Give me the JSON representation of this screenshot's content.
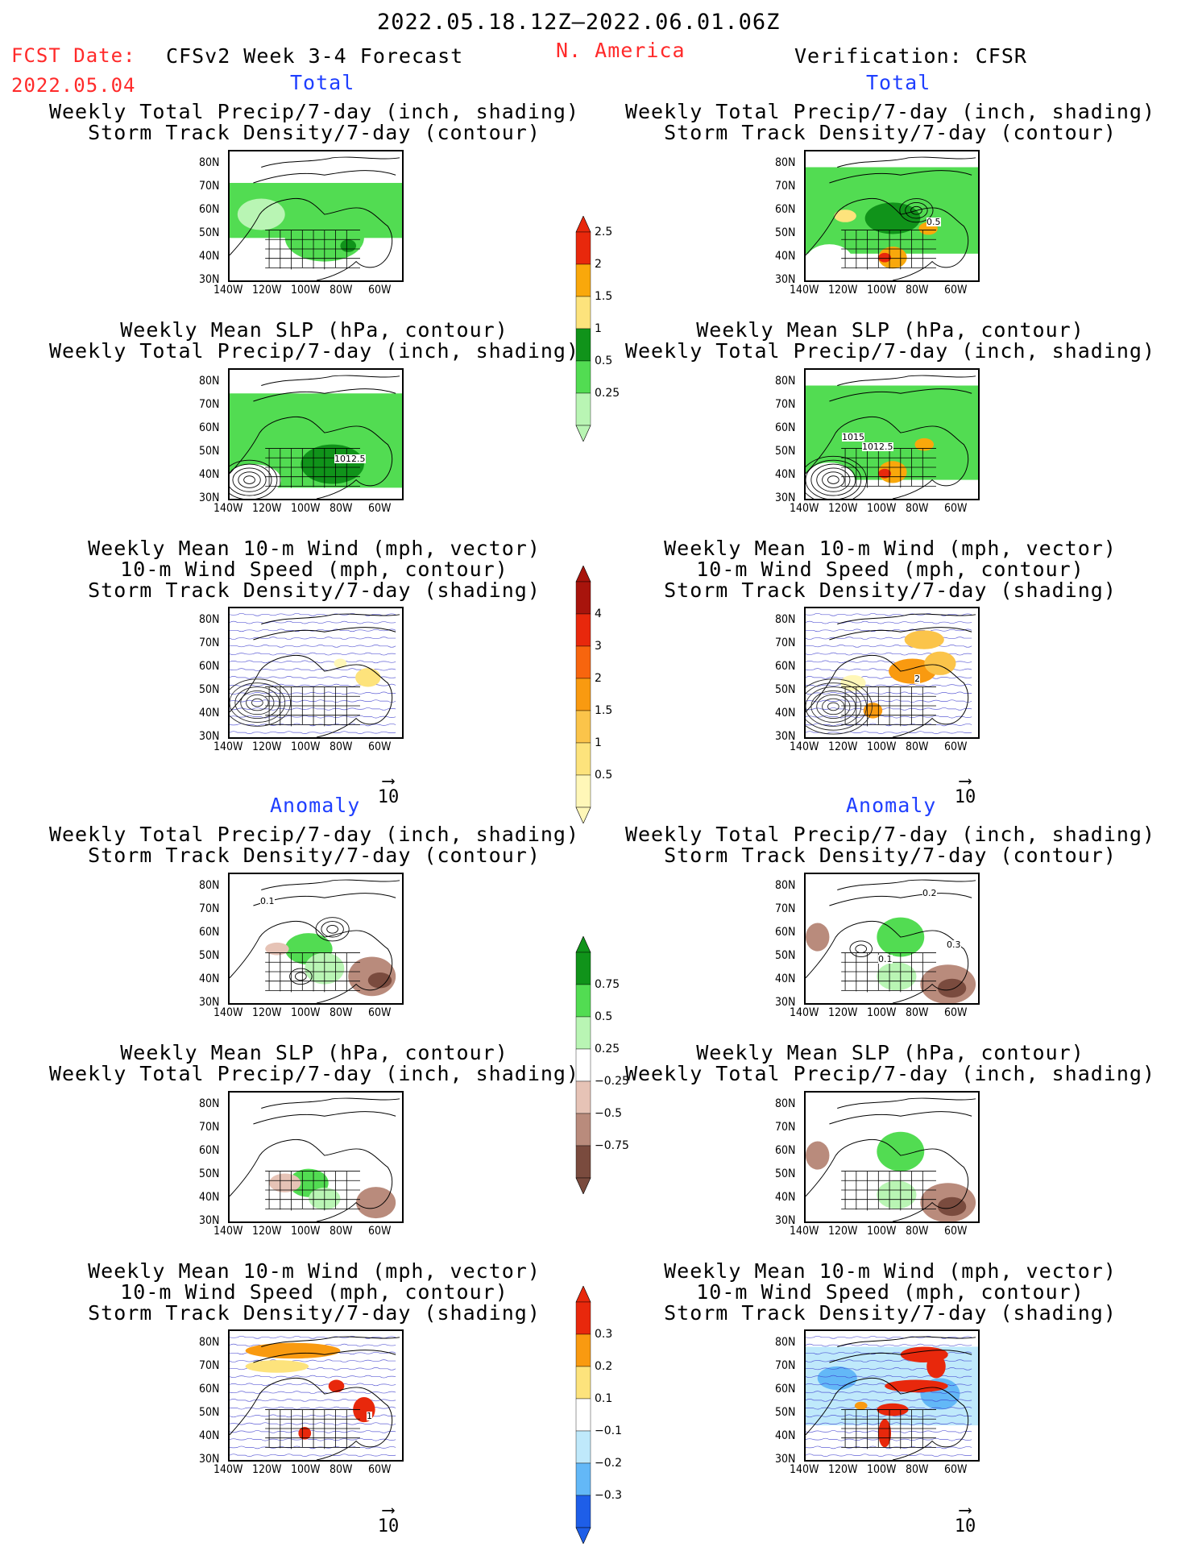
{
  "header": {
    "period": "2022.05.18.12Z—2022.06.01.06Z",
    "region": "N. America",
    "fcst_label": "FCST Date:",
    "fcst_date": "2022.05.04",
    "model": "CFSv2 Week 3-4 Forecast",
    "verification": "Verification: CFSR"
  },
  "sections": {
    "total": "Total",
    "anomaly": "Anomaly"
  },
  "titles": {
    "precip_storm": [
      "Weekly Total Precip/7-day (inch, shading)",
      "Storm Track Density/7-day (contour)"
    ],
    "slp_precip": [
      "Weekly Mean SLP (hPa, contour)",
      "Weekly Total Precip/7-day (inch, shading)"
    ],
    "wind_storm": [
      "Weekly Mean 10-m Wind (mph, vector)",
      "10-m Wind Speed (mph, contour)",
      "Storm Track Density/7-day (shading)"
    ]
  },
  "axes": {
    "lat": [
      "80N",
      "70N",
      "60N",
      "50N",
      "40N",
      "30N"
    ],
    "lon": [
      "140W",
      "120W",
      "100W",
      "80W",
      "60W"
    ]
  },
  "vector_ref": "10",
  "map_labels": {
    "r1_right": "0.5",
    "r2_left": "1012.5",
    "r2_right_a": "1015",
    "r2_right_b": "1012.5",
    "r3_right": "2",
    "r4_left": "0.1",
    "r4_right_a": "0.2",
    "r4_right_b": "0.1",
    "r4_right_c": "0.3",
    "r6_left": "1"
  },
  "colorbars": {
    "precip_total": {
      "labels": [
        "2.5",
        "2",
        "1.5",
        "1",
        "0.5",
        "0.25"
      ],
      "colors": [
        "#e8280c",
        "#f9a80b",
        "#fde37c",
        "#10931a",
        "#52dc52",
        "#b9f5b4"
      ]
    },
    "storm_total": {
      "labels": [
        "4",
        "3",
        "2",
        "1.5",
        "1",
        "0.5"
      ],
      "colors": [
        "#a8140c",
        "#e8280c",
        "#f7650e",
        "#f99a10",
        "#fbc44a",
        "#fde37c",
        "#fff7b8"
      ]
    },
    "precip_anom": {
      "labels": [
        "0.75",
        "0.5",
        "0.25",
        "−0.25",
        "−0.5",
        "−0.75"
      ],
      "colors": [
        "#10931a",
        "#52dc52",
        "#b9f5b4",
        "#ffffff",
        "#e6c3b6",
        "#b98b7c",
        "#7a4b3e"
      ]
    },
    "storm_anom": {
      "labels": [
        "0.3",
        "0.2",
        "0.1",
        "−0.1",
        "−0.2",
        "−0.3"
      ],
      "colors": [
        "#e8280c",
        "#f99a10",
        "#fde37c",
        "#ffffff",
        "#bfe9fb",
        "#63b8f7",
        "#1e5ee8"
      ]
    }
  }
}
